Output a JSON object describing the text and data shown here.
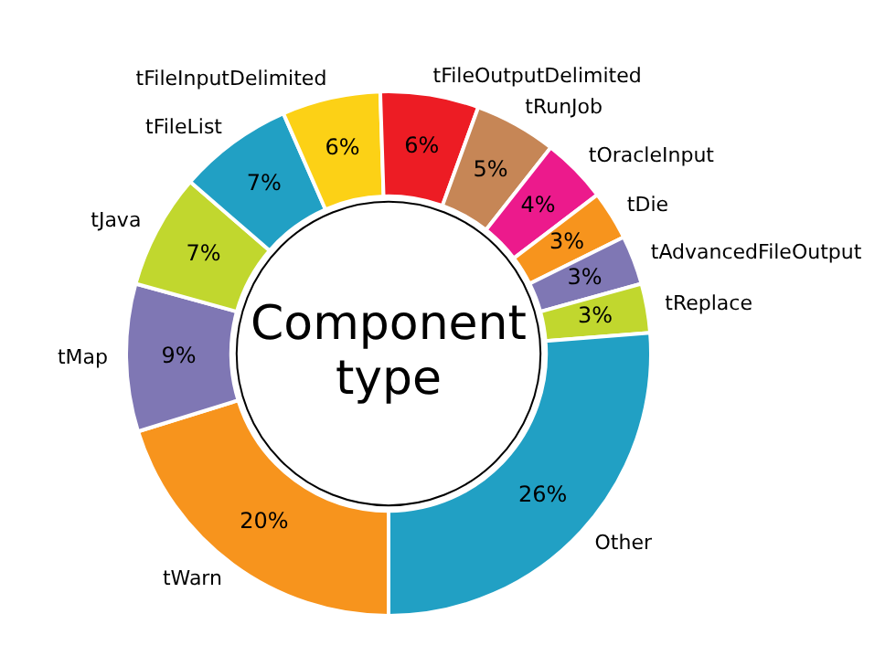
{
  "chart_data": {
    "type": "donut",
    "title": "Component type",
    "categories": [
      "tWarn",
      "tMap",
      "tJava",
      "tFileList",
      "tFileInputDelimited",
      "tFileOutputDelimited",
      "tRunJob",
      "tOracleInput",
      "tDie",
      "tAdvancedFileOutput",
      "tReplace",
      "Other"
    ],
    "values": [
      20,
      9,
      7,
      7,
      6,
      6,
      5,
      4,
      3,
      3,
      3,
      26
    ],
    "value_labels": [
      "20%",
      "9%",
      "7%",
      "7%",
      "6%",
      "6%",
      "5%",
      "4%",
      "3%",
      "3%",
      "3%",
      "26%"
    ],
    "colors": [
      "#f7941d",
      "#7f77b4",
      "#c1d72e",
      "#21a0c4",
      "#fcd116",
      "#ed1c24",
      "#c68656",
      "#ec1a8c",
      "#f7941d",
      "#7f77b4",
      "#c1d72e",
      "#21a0c4"
    ],
    "legend": false
  }
}
